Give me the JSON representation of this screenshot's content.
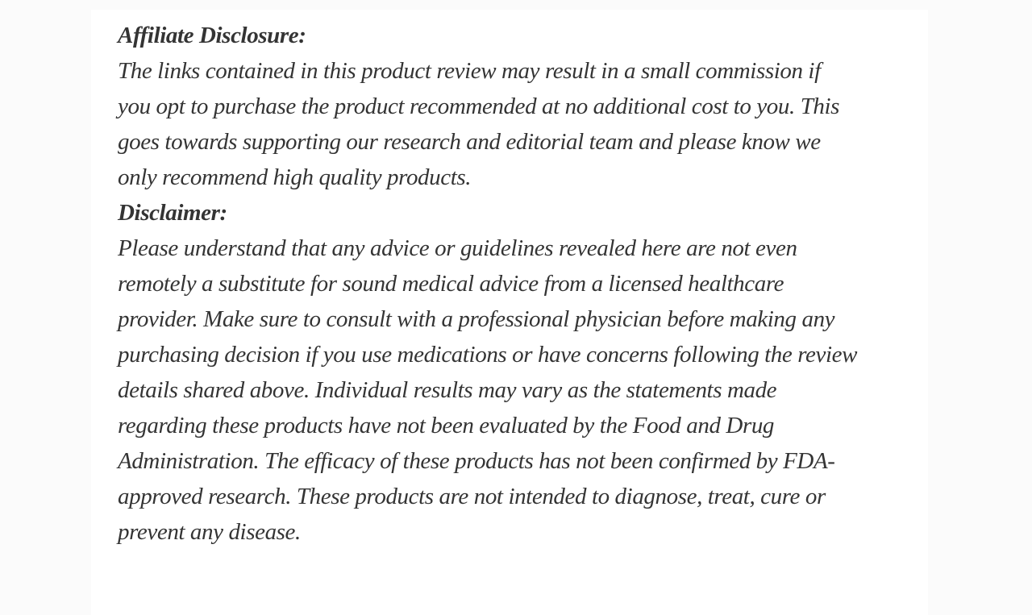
{
  "colors": {
    "outer_background": "#fbfbfb",
    "card_background": "#ffffff",
    "text": "#343434"
  },
  "article": {
    "sections": [
      {
        "heading": "Affiliate Disclosure:",
        "lines": [
          "The links contained in this product review may result in a small commission if",
          "you opt to purchase the product recommended at no additional cost to you. This",
          "goes towards supporting our research and editorial team and please know we",
          "only recommend high quality products."
        ]
      },
      {
        "heading": "Disclaimer:",
        "lines": [
          "Please understand that any advice or guidelines revealed here are not even",
          "remotely a substitute for sound medical advice from a licensed healthcare",
          "provider. Make sure to consult with a professional physician before making any",
          "purchasing decision if you use medications or have concerns following the review",
          "details shared above. Individual results may vary as the statements made",
          "regarding these products have not been evaluated by the Food and Drug",
          "Administration. The efficacy of these products has not been confirmed by FDA-",
          "approved research. These products are not intended to diagnose, treat, cure or",
          "prevent any disease."
        ]
      }
    ]
  }
}
